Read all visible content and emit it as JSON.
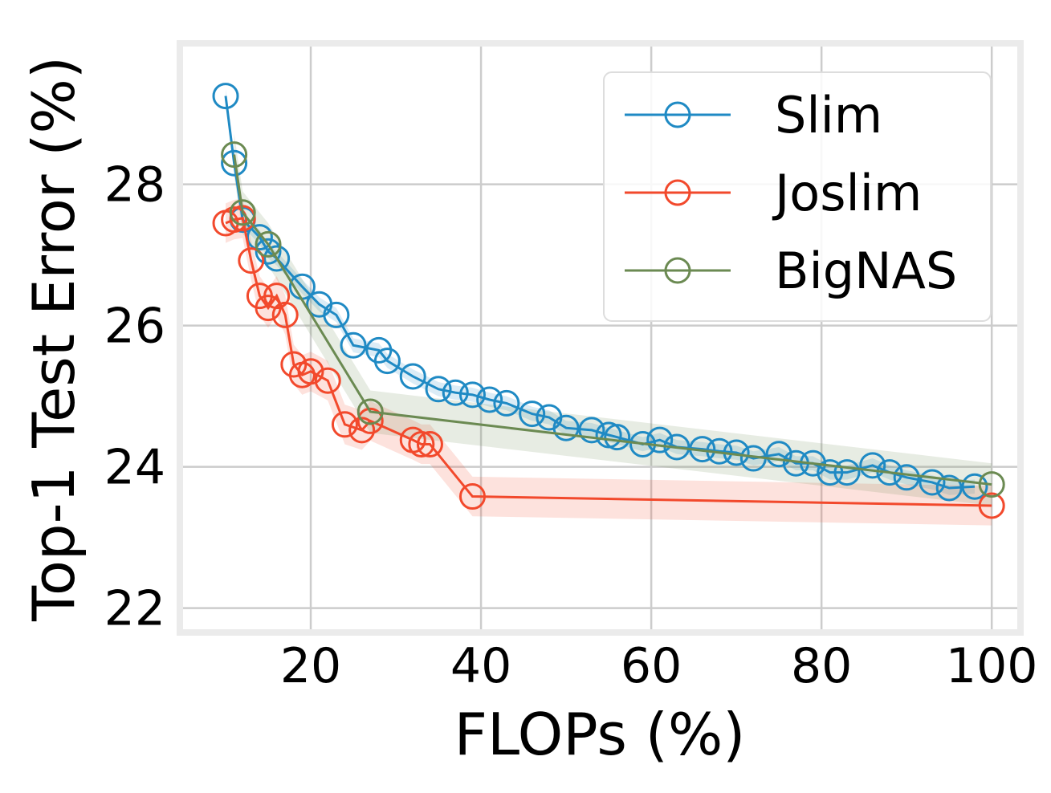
{
  "chart_data": {
    "type": "line",
    "xlabel": "FLOPs (%)",
    "ylabel": "Top-1 Test Error (%)",
    "xlim": [
      5,
      103
    ],
    "ylim": [
      21.7,
      29.95
    ],
    "x_ticks": [
      20,
      40,
      60,
      80,
      100
    ],
    "y_ticks": [
      22,
      24,
      26,
      28
    ],
    "x_tick_labels": [
      "20",
      "40",
      "60",
      "80",
      "100"
    ],
    "y_tick_labels": [
      "22",
      "24",
      "26",
      "28"
    ],
    "grid": true,
    "legend_position": "top-right",
    "series": [
      {
        "name": "Slim",
        "color": "#1f8ac4",
        "marker": "open-circle",
        "band": 0.1,
        "points": [
          [
            10,
            29.25
          ],
          [
            11,
            28.3
          ],
          [
            12,
            27.5
          ],
          [
            14,
            27.25
          ],
          [
            15,
            27.05
          ],
          [
            16,
            26.95
          ],
          [
            19,
            26.55
          ],
          [
            21,
            26.3
          ],
          [
            23,
            26.15
          ],
          [
            25,
            25.72
          ],
          [
            28,
            25.65
          ],
          [
            29,
            25.5
          ],
          [
            32,
            25.28
          ],
          [
            35,
            25.1
          ],
          [
            37,
            25.05
          ],
          [
            39,
            25.02
          ],
          [
            41,
            24.95
          ],
          [
            43,
            24.9
          ],
          [
            46,
            24.75
          ],
          [
            48,
            24.7
          ],
          [
            50,
            24.55
          ],
          [
            53,
            24.52
          ],
          [
            55,
            24.45
          ],
          [
            56,
            24.42
          ],
          [
            59,
            24.32
          ],
          [
            61,
            24.38
          ],
          [
            63,
            24.28
          ],
          [
            66,
            24.25
          ],
          [
            68,
            24.22
          ],
          [
            70,
            24.2
          ],
          [
            72,
            24.12
          ],
          [
            75,
            24.18
          ],
          [
            77,
            24.05
          ],
          [
            79,
            24.05
          ],
          [
            81,
            23.92
          ],
          [
            83,
            23.92
          ],
          [
            86,
            24.02
          ],
          [
            88,
            23.92
          ],
          [
            90,
            23.85
          ],
          [
            93,
            23.78
          ],
          [
            95,
            23.7
          ],
          [
            98,
            23.72
          ]
        ]
      },
      {
        "name": "Joslim",
        "color": "#f2492c",
        "marker": "open-circle",
        "band": 0.28,
        "points": [
          [
            10,
            27.45
          ],
          [
            11,
            27.5
          ],
          [
            12,
            27.52
          ],
          [
            13,
            26.92
          ],
          [
            14,
            26.42
          ],
          [
            15,
            26.25
          ],
          [
            16,
            26.42
          ],
          [
            17,
            26.15
          ],
          [
            18,
            25.45
          ],
          [
            19,
            25.3
          ],
          [
            20,
            25.35
          ],
          [
            22,
            25.22
          ],
          [
            24,
            24.6
          ],
          [
            26,
            24.52
          ],
          [
            27,
            24.65
          ],
          [
            32,
            24.38
          ],
          [
            33,
            24.32
          ],
          [
            34,
            24.32
          ],
          [
            39,
            23.58
          ],
          [
            100,
            23.45
          ]
        ]
      },
      {
        "name": "BigNAS",
        "color": "#6b8a52",
        "marker": "open-circle",
        "band": 0.3,
        "points": [
          [
            11,
            28.42
          ],
          [
            12,
            27.6
          ],
          [
            15,
            27.15
          ],
          [
            27,
            24.78
          ],
          [
            100,
            23.75
          ]
        ]
      }
    ]
  }
}
